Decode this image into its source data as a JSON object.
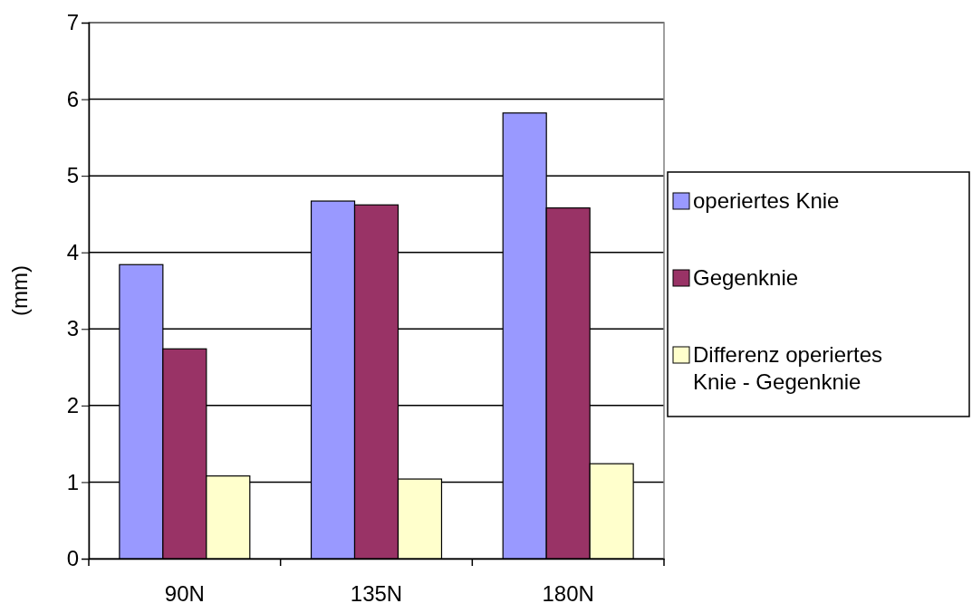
{
  "chart_data": {
    "type": "bar",
    "ylabel": "(mm)",
    "categories": [
      "90N",
      "135N",
      "180N"
    ],
    "series": [
      {
        "name": "operiertes Knie",
        "color": "#9999ff",
        "values": [
          3.84,
          4.67,
          5.82
        ]
      },
      {
        "name": "Gegenknie",
        "color": "#993366",
        "values": [
          2.74,
          4.62,
          4.58
        ]
      },
      {
        "name": "Differenz operiertes Knie - Gegenknie",
        "color": "#ffffcc",
        "values": [
          1.08,
          1.04,
          1.24
        ]
      }
    ],
    "ylim": [
      0,
      7
    ],
    "yticks": [
      0,
      1,
      2,
      3,
      4,
      5,
      6,
      7
    ],
    "grid": "y",
    "legend": "right"
  }
}
